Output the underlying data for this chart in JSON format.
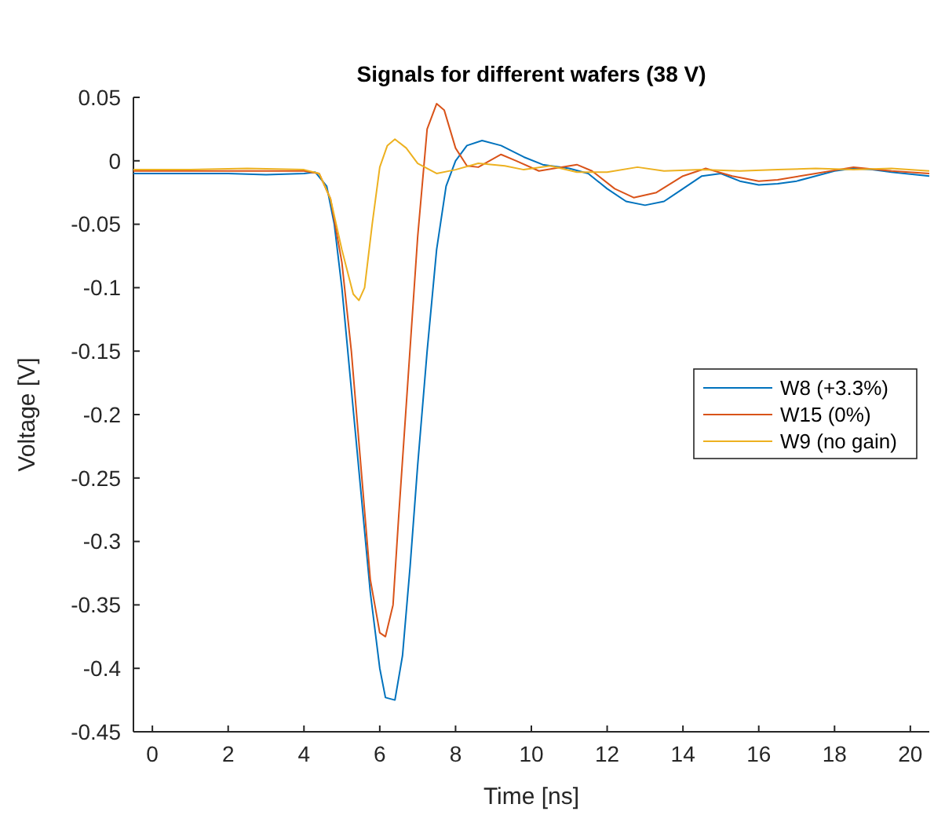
{
  "chart_data": {
    "type": "line",
    "title": "Signals for different wafers (38 V)",
    "xlabel": "Time [ns]",
    "ylabel": "Voltage [V]",
    "xlim": [
      -0.5,
      20.5
    ],
    "ylim": [
      -0.45,
      0.05
    ],
    "xticks": [
      0,
      2,
      4,
      6,
      8,
      10,
      12,
      14,
      16,
      18,
      20
    ],
    "yticks": [
      -0.45,
      -0.4,
      -0.35,
      -0.3,
      -0.25,
      -0.2,
      -0.15,
      -0.1,
      -0.05,
      0,
      0.05
    ],
    "grid": false,
    "legend": "right",
    "marker": "none",
    "line_style": "solid",
    "series": [
      {
        "name": "W8 (+3.3%)",
        "color": "#0072bd",
        "x": [
          -0.5,
          1,
          2,
          3,
          4,
          4.3,
          4.6,
          4.8,
          5.0,
          5.25,
          5.5,
          5.75,
          6.0,
          6.15,
          6.4,
          6.6,
          6.8,
          7.0,
          7.25,
          7.5,
          7.75,
          8.0,
          8.3,
          8.7,
          9.2,
          9.8,
          10.3,
          11,
          11.5,
          12,
          12.5,
          13,
          13.5,
          14,
          14.5,
          15,
          15.5,
          16,
          16.5,
          17,
          17.5,
          18,
          18.5,
          19,
          19.5,
          20.5
        ],
        "values": [
          -0.01,
          -0.01,
          -0.01,
          -0.011,
          -0.01,
          -0.009,
          -0.02,
          -0.05,
          -0.1,
          -0.18,
          -0.26,
          -0.34,
          -0.4,
          -0.423,
          -0.425,
          -0.39,
          -0.32,
          -0.24,
          -0.15,
          -0.07,
          -0.02,
          0.0,
          0.012,
          0.016,
          0.012,
          0.003,
          -0.003,
          -0.006,
          -0.01,
          -0.022,
          -0.032,
          -0.035,
          -0.032,
          -0.022,
          -0.012,
          -0.01,
          -0.016,
          -0.019,
          -0.018,
          -0.016,
          -0.012,
          -0.008,
          -0.006,
          -0.007,
          -0.009,
          -0.012
        ]
      },
      {
        "name": "W15 (0%)",
        "color": "#d95319",
        "x": [
          -0.5,
          2,
          4,
          4.4,
          4.7,
          5.0,
          5.25,
          5.5,
          5.75,
          6.0,
          6.15,
          6.35,
          6.5,
          6.75,
          7.0,
          7.25,
          7.5,
          7.7,
          8.0,
          8.3,
          8.6,
          9.2,
          9.6,
          10.2,
          10.6,
          11.2,
          11.6,
          12.2,
          12.7,
          13.3,
          14,
          14.6,
          15.3,
          16,
          16.5,
          17.5,
          18.5,
          19.5,
          20.5
        ],
        "values": [
          -0.008,
          -0.008,
          -0.008,
          -0.01,
          -0.03,
          -0.08,
          -0.15,
          -0.24,
          -0.33,
          -0.372,
          -0.375,
          -0.35,
          -0.28,
          -0.17,
          -0.06,
          0.025,
          0.045,
          0.04,
          0.01,
          -0.004,
          -0.005,
          0.005,
          0.0,
          -0.008,
          -0.006,
          -0.003,
          -0.008,
          -0.022,
          -0.029,
          -0.025,
          -0.012,
          -0.006,
          -0.012,
          -0.016,
          -0.015,
          -0.01,
          -0.005,
          -0.008,
          -0.01
        ]
      },
      {
        "name": "W9 (no gain)",
        "color": "#edb120",
        "x": [
          -0.5,
          1,
          2.5,
          4,
          4.4,
          4.7,
          5.0,
          5.3,
          5.45,
          5.6,
          5.8,
          6.0,
          6.2,
          6.4,
          6.7,
          7.0,
          7.5,
          8.0,
          8.6,
          9.3,
          9.8,
          10.5,
          11.2,
          12,
          12.8,
          13.5,
          14.5,
          15.5,
          16.5,
          17.5,
          18.5,
          19.5,
          20.5
        ],
        "values": [
          -0.007,
          -0.007,
          -0.006,
          -0.007,
          -0.01,
          -0.03,
          -0.07,
          -0.105,
          -0.11,
          -0.1,
          -0.05,
          -0.005,
          0.012,
          0.017,
          0.01,
          -0.002,
          -0.01,
          -0.007,
          -0.002,
          -0.004,
          -0.007,
          -0.004,
          -0.009,
          -0.009,
          -0.005,
          -0.008,
          -0.007,
          -0.008,
          -0.007,
          -0.006,
          -0.007,
          -0.006,
          -0.008
        ]
      }
    ]
  }
}
